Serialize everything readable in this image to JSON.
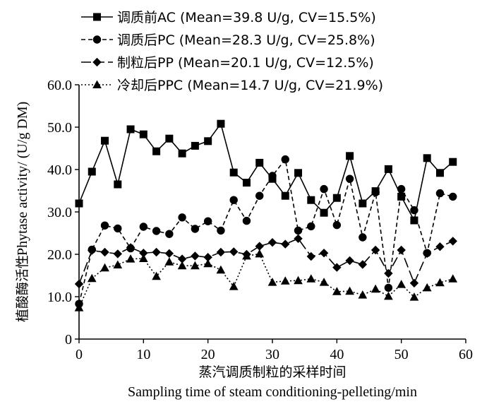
{
  "chart_data": {
    "type": "line",
    "xlabel": "蒸汽调质制粒的采样时间",
    "xlabel_en": "Sampling time of steam conditioning-pelleting/min",
    "ylabel": "植酸酶活性",
    "ylabel_en": "Phytase activity/ (U/g DM)",
    "xlim": [
      0,
      60
    ],
    "ylim": [
      0,
      60
    ],
    "xticks": [
      "0",
      "10",
      "20",
      "30",
      "40",
      "50",
      "60"
    ],
    "yticks": [
      "0",
      "10.0",
      "20.0",
      "30.0",
      "40.0",
      "50.0",
      "60.0"
    ],
    "legend_position": "top",
    "x": [
      0,
      2,
      4,
      6,
      8,
      10,
      12,
      14,
      16,
      18,
      20,
      22,
      24,
      26,
      28,
      30,
      32,
      34,
      36,
      38,
      40,
      42,
      44,
      46,
      48,
      50,
      52,
      54,
      56,
      58
    ],
    "series": [
      {
        "name": "调质前AC (Mean=39.8 U/g, CV=15.5%)",
        "marker": "square",
        "dash": "solid",
        "values": [
          32.0,
          39.5,
          46.8,
          36.5,
          49.5,
          48.3,
          44.3,
          47.3,
          43.8,
          45.6,
          46.7,
          50.8,
          39.3,
          36.9,
          41.6,
          37.8,
          33.8,
          39.2,
          32.8,
          29.8,
          33.3,
          43.2,
          32.0,
          34.9,
          40.1,
          33.6,
          28.0,
          42.7,
          39.2,
          41.8
        ]
      },
      {
        "name": "调质后PC (Mean=28.3 U/g, CV=25.8%)",
        "marker": "circle",
        "dash": "short-dash",
        "values": [
          8.3,
          21.1,
          26.8,
          26.1,
          21.4,
          26.5,
          25.5,
          24.8,
          28.7,
          26.0,
          27.8,
          25.6,
          32.8,
          27.9,
          33.8,
          38.5,
          42.4,
          25.6,
          26.6,
          35.4,
          26.9,
          37.8,
          24.0,
          34.6,
          12.1,
          35.4,
          30.4,
          20.3,
          34.4,
          33.6
        ]
      },
      {
        "name": "制粒后PP (Mean=20.1 U/g, CV=12.5%)",
        "marker": "diamond",
        "dash": "long-dash",
        "values": [
          13.0,
          20.9,
          20.5,
          20.1,
          21.6,
          20.3,
          20.5,
          20.2,
          18.9,
          19.6,
          19.3,
          20.5,
          20.6,
          20.0,
          21.9,
          22.8,
          22.4,
          23.7,
          19.5,
          20.3,
          16.9,
          18.5,
          17.6,
          21.0,
          15.5,
          21.0,
          13.2,
          20.2,
          21.8,
          23.1
        ]
      },
      {
        "name": "冷却后PPC (Mean=14.7 U/g, CV=21.9%)",
        "marker": "triangle",
        "dash": "dotted",
        "values": [
          7.4,
          14.3,
          16.8,
          17.5,
          18.9,
          19.0,
          14.8,
          18.2,
          17.3,
          17.3,
          17.8,
          16.3,
          12.4,
          19.6,
          20.1,
          13.4,
          13.7,
          13.8,
          14.2,
          13.4,
          11.2,
          11.3,
          10.4,
          11.8,
          10.1,
          12.9,
          9.9,
          12.1,
          13.3,
          14.2
        ]
      }
    ]
  }
}
